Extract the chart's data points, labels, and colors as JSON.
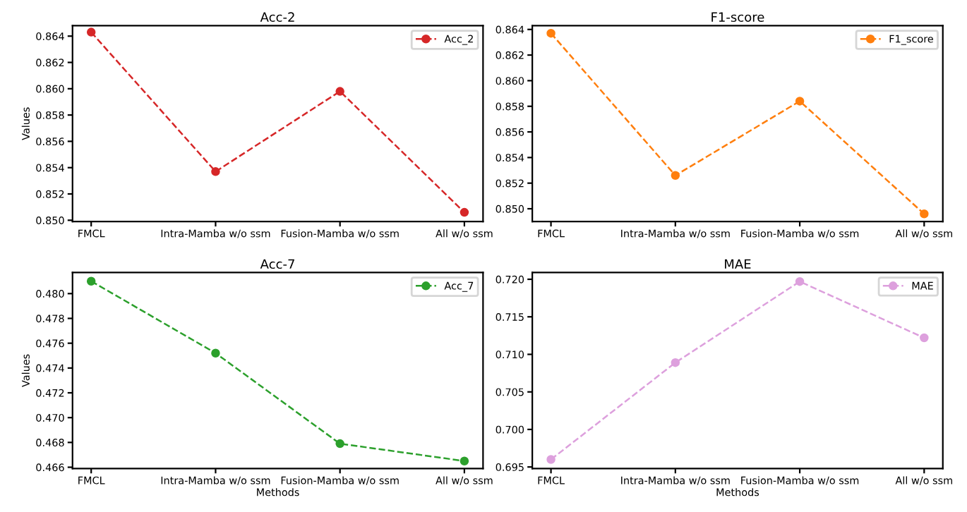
{
  "chart_data": [
    {
      "type": "line",
      "title": "Acc-2",
      "ylabel": "Values",
      "categories": [
        "FMCL",
        "Intra-Mamba w/o ssm",
        "Fusion-Mamba w/o ssm",
        "All w/o ssm"
      ],
      "series": [
        {
          "name": "Acc_2",
          "color": "#d62728",
          "values": [
            0.8643,
            0.8537,
            0.8598,
            0.8506
          ]
        }
      ],
      "ylim": [
        0.8499,
        0.8648
      ],
      "yticks": [
        {
          "value": 0.85,
          "label": "0.850"
        },
        0.852,
        0.854,
        0.856,
        0.858,
        {
          "value": 0.86,
          "label": "0.860"
        },
        0.862,
        0.864
      ],
      "marker": "circle",
      "line_style": "dashed",
      "legend": "top right",
      "grid": false
    },
    {
      "type": "line",
      "title": "F1-score",
      "categories": [
        "FMCL",
        "Intra-Mamba w/o ssm",
        "Fusion-Mamba w/o ssm",
        "All w/o ssm"
      ],
      "series": [
        {
          "name": "F1_score",
          "color": "#ff7f0e",
          "values": [
            0.8637,
            0.8526,
            0.8584,
            0.8496
          ]
        }
      ],
      "ylim": [
        0.849,
        0.8643
      ],
      "yticks": [
        {
          "value": 0.85,
          "label": "0.850"
        },
        0.852,
        0.854,
        0.856,
        0.858,
        {
          "value": 0.86,
          "label": "0.860"
        },
        0.862,
        0.864
      ],
      "marker": "circle",
      "line_style": "dashed",
      "legend": "top right",
      "grid": false
    },
    {
      "type": "line",
      "title": "Acc-7",
      "xlabel": "Methods",
      "ylabel": "Values",
      "categories": [
        "FMCL",
        "Intra-Mamba w/o ssm",
        "Fusion-Mamba w/o ssm",
        "All w/o ssm"
      ],
      "series": [
        {
          "name": "Acc_7",
          "color": "#2ca02c",
          "values": [
            0.481,
            0.4752,
            0.4679,
            0.4665
          ]
        }
      ],
      "ylim": [
        0.4659,
        0.4817
      ],
      "yticks": [
        0.466,
        0.468,
        {
          "value": 0.47,
          "label": "0.470"
        },
        0.472,
        0.474,
        0.476,
        0.478,
        {
          "value": 0.48,
          "label": "0.480"
        }
      ],
      "marker": "circle",
      "line_style": "dashed",
      "legend": "top right",
      "grid": false
    },
    {
      "type": "line",
      "title": "MAE",
      "xlabel": "Methods",
      "categories": [
        "FMCL",
        "Intra-Mamba w/o ssm",
        "Fusion-Mamba w/o ssm",
        "All w/o ssm"
      ],
      "series": [
        {
          "name": "MAE",
          "color": "#dda0dd",
          "values": [
            0.696,
            0.7089,
            0.7197,
            0.7122
          ]
        }
      ],
      "ylim": [
        0.6948,
        0.7209
      ],
      "yticks": [
        0.695,
        {
          "value": 0.7,
          "label": "0.700"
        },
        0.705,
        {
          "value": 0.71,
          "label": "0.710"
        },
        0.715,
        {
          "value": 0.72,
          "label": "0.720"
        }
      ],
      "marker": "circle",
      "line_style": "dashed",
      "legend": "top right",
      "grid": false
    }
  ]
}
